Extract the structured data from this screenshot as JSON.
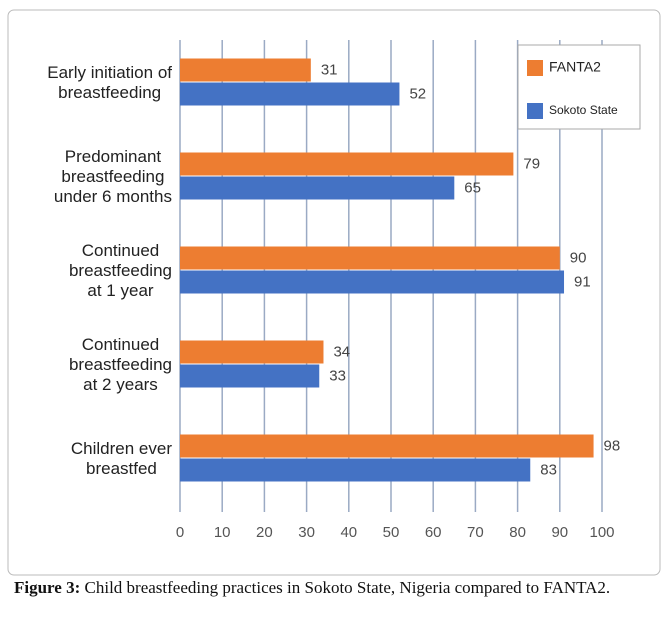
{
  "chart_data": {
    "type": "barh",
    "categories": [
      "Early initiation of\nbreastfeeding",
      "Predominant\nbreastfeeding\nunder 6 months",
      "Continued\nbreastfeeding\nat 1 year",
      "Continued\nbreastfeeding\nat 2 years",
      "Children ever\nbreastfed"
    ],
    "series": [
      {
        "name": "FANTA2",
        "color": "#ed7d31",
        "values": [
          31,
          79,
          90,
          34,
          98
        ]
      },
      {
        "name": "Sokoto State",
        "color": "#4472c4",
        "values": [
          52,
          65,
          91,
          33,
          83
        ]
      }
    ],
    "xlim": [
      0,
      100
    ],
    "xticks": [
      0,
      10,
      20,
      30,
      40,
      50,
      60,
      70,
      80,
      90,
      100
    ],
    "grid": true,
    "legend": "upper right"
  },
  "caption": {
    "label": "Figure 3:",
    "text": "Child breastfeeding practices in Sokoto State, Nigeria compared to FANTA2."
  }
}
